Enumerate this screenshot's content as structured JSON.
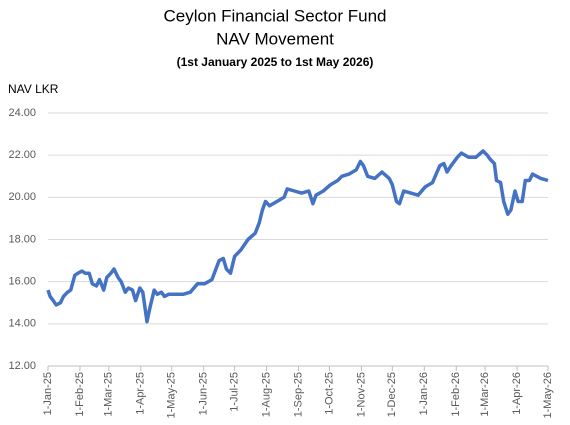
{
  "chart_data": {
    "type": "line",
    "title": "Ceylon Financial Sector Fund",
    "subtitle": "NAV Movement",
    "period": "(1st January 2025 to 1st May 2026)",
    "y_label": "NAV LKR",
    "x": [
      "2025-01-01",
      "2025-01-03",
      "2025-01-06",
      "2025-01-09",
      "2025-01-13",
      "2025-01-16",
      "2025-01-20",
      "2025-01-23",
      "2025-01-27",
      "2025-01-30",
      "2025-02-03",
      "2025-02-06",
      "2025-02-10",
      "2025-02-13",
      "2025-02-17",
      "2025-02-20",
      "2025-02-24",
      "2025-02-27",
      "2025-03-03",
      "2025-03-06",
      "2025-03-10",
      "2025-03-13",
      "2025-03-17",
      "2025-03-20",
      "2025-03-24",
      "2025-03-27",
      "2025-03-31",
      "2025-04-03",
      "2025-04-07",
      "2025-04-10",
      "2025-04-14",
      "2025-04-17",
      "2025-04-21",
      "2025-04-24",
      "2025-04-28",
      "2025-05-05",
      "2025-05-12",
      "2025-05-19",
      "2025-05-26",
      "2025-06-02",
      "2025-06-09",
      "2025-06-16",
      "2025-06-20",
      "2025-06-23",
      "2025-06-27",
      "2025-07-01",
      "2025-07-07",
      "2025-07-14",
      "2025-07-21",
      "2025-07-25",
      "2025-07-28",
      "2025-07-31",
      "2025-08-04",
      "2025-08-11",
      "2025-08-18",
      "2025-08-21",
      "2025-08-28",
      "2025-09-04",
      "2025-09-11",
      "2025-09-15",
      "2025-09-18",
      "2025-09-25",
      "2025-10-02",
      "2025-10-09",
      "2025-10-13",
      "2025-10-20",
      "2025-10-27",
      "2025-10-31",
      "2025-11-03",
      "2025-11-07",
      "2025-11-14",
      "2025-11-21",
      "2025-11-28",
      "2025-12-01",
      "2025-12-05",
      "2025-12-08",
      "2025-12-12",
      "2025-12-19",
      "2025-12-26",
      "2026-01-02",
      "2026-01-09",
      "2026-01-16",
      "2026-01-20",
      "2026-01-23",
      "2026-01-27",
      "2026-02-02",
      "2026-02-06",
      "2026-02-13",
      "2026-02-20",
      "2026-02-27",
      "2026-03-03",
      "2026-03-06",
      "2026-03-10",
      "2026-03-12",
      "2026-03-16",
      "2026-03-19",
      "2026-03-23",
      "2026-03-26",
      "2026-03-30",
      "2026-04-02",
      "2026-04-06",
      "2026-04-09",
      "2026-04-13",
      "2026-04-16",
      "2026-04-20",
      "2026-04-24",
      "2026-05-01"
    ],
    "series": [
      {
        "name": "NAV",
        "color": "#4472c4",
        "values": [
          15.6,
          15.3,
          15.1,
          14.9,
          15.0,
          15.3,
          15.5,
          15.6,
          16.3,
          16.4,
          16.5,
          16.4,
          16.4,
          15.9,
          15.8,
          16.1,
          15.6,
          16.2,
          16.4,
          16.6,
          16.2,
          16.0,
          15.5,
          15.7,
          15.6,
          15.1,
          15.7,
          15.5,
          14.1,
          14.8,
          15.6,
          15.4,
          15.5,
          15.3,
          15.4,
          15.4,
          15.4,
          15.5,
          15.9,
          15.9,
          16.1,
          17.0,
          17.1,
          16.6,
          16.4,
          17.2,
          17.5,
          18.0,
          18.3,
          18.8,
          19.4,
          19.8,
          19.6,
          19.8,
          20.0,
          20.4,
          20.3,
          20.2,
          20.3,
          19.7,
          20.1,
          20.3,
          20.6,
          20.8,
          21.0,
          21.1,
          21.3,
          21.7,
          21.5,
          21.0,
          20.9,
          21.2,
          20.9,
          20.6,
          19.8,
          19.7,
          20.3,
          20.2,
          20.1,
          20.5,
          20.7,
          21.5,
          21.6,
          21.2,
          21.5,
          21.9,
          22.1,
          21.9,
          21.9,
          22.2,
          22.0,
          21.8,
          21.6,
          20.8,
          20.7,
          19.8,
          19.2,
          19.4,
          20.3,
          19.8,
          19.8,
          20.8,
          20.8,
          21.1,
          21.0,
          20.9,
          20.8
        ]
      }
    ],
    "xlim": [
      "2025-01-01",
      "2026-05-01"
    ],
    "xticks": [
      {
        "value": "2025-01-01",
        "label": "1-Jan-25"
      },
      {
        "value": "2025-02-01",
        "label": "1-Feb-25"
      },
      {
        "value": "2025-03-01",
        "label": "1-Mar-25"
      },
      {
        "value": "2025-04-01",
        "label": "1-Apr-25"
      },
      {
        "value": "2025-05-01",
        "label": "1-May-25"
      },
      {
        "value": "2025-06-01",
        "label": "1-Jun-25"
      },
      {
        "value": "2025-07-01",
        "label": "1-Jul-25"
      },
      {
        "value": "2025-08-01",
        "label": "1-Aug-25"
      },
      {
        "value": "2025-09-01",
        "label": "1-Sep-25"
      },
      {
        "value": "2025-10-01",
        "label": "1-Oct-25"
      },
      {
        "value": "2025-11-01",
        "label": "1-Nov-25"
      },
      {
        "value": "2025-12-01",
        "label": "1-Dec-25"
      },
      {
        "value": "2026-01-01",
        "label": "1-Jan-26"
      },
      {
        "value": "2026-02-01",
        "label": "1-Feb-26"
      },
      {
        "value": "2026-03-01",
        "label": "1-Mar-26"
      },
      {
        "value": "2026-04-01",
        "label": "1-Apr-26"
      },
      {
        "value": "2026-05-01",
        "label": "1-May-26"
      }
    ],
    "ylim": [
      12,
      24
    ],
    "yticks": [
      {
        "value": 12,
        "label": "12.00"
      },
      {
        "value": 14,
        "label": "14.00"
      },
      {
        "value": 16,
        "label": "16.00"
      },
      {
        "value": 18,
        "label": "18.00"
      },
      {
        "value": 20,
        "label": "20.00"
      },
      {
        "value": 22,
        "label": "22.00"
      },
      {
        "value": 24,
        "label": "24.00"
      }
    ],
    "grid": true
  }
}
